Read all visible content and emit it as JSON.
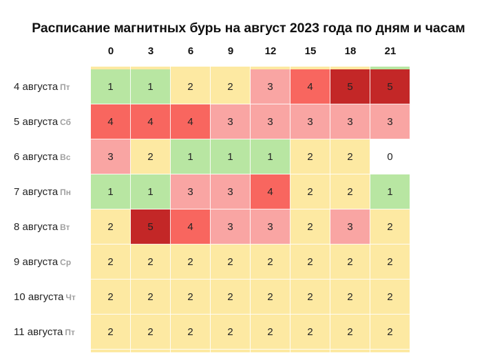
{
  "colors": {
    "0": "#ffffff",
    "1": "#b8e6a2",
    "2": "#fde9a2",
    "3": "#f9a5a3",
    "4": "#f8665f",
    "5": "#c32727"
  },
  "chart_data": {
    "type": "heatmap",
    "title": "Расписание магнитных бурь на август 2023 года по дням и часам",
    "x": [
      "0",
      "3",
      "6",
      "9",
      "12",
      "15",
      "18",
      "21"
    ],
    "rows": [
      {
        "day": "4 августа",
        "weekday": "Пт",
        "values": [
          1,
          1,
          2,
          2,
          3,
          4,
          5,
          5
        ]
      },
      {
        "day": "5 августа",
        "weekday": "Сб",
        "values": [
          4,
          4,
          4,
          3,
          3,
          3,
          3,
          3
        ]
      },
      {
        "day": "6 августа",
        "weekday": "Вс",
        "values": [
          3,
          2,
          1,
          1,
          1,
          2,
          2,
          0
        ]
      },
      {
        "day": "7 августа",
        "weekday": "Пн",
        "values": [
          1,
          1,
          3,
          3,
          4,
          2,
          2,
          1
        ]
      },
      {
        "day": "8 августа",
        "weekday": "Вт",
        "values": [
          2,
          5,
          4,
          3,
          3,
          2,
          3,
          2
        ]
      },
      {
        "day": "9 августа",
        "weekday": "Ср",
        "values": [
          2,
          2,
          2,
          2,
          2,
          2,
          2,
          2
        ]
      },
      {
        "day": "10 августа",
        "weekday": "Чт",
        "values": [
          2,
          2,
          2,
          2,
          2,
          2,
          2,
          2
        ]
      },
      {
        "day": "11 августа",
        "weekday": "Пт",
        "values": [
          2,
          2,
          2,
          2,
          2,
          2,
          2,
          2
        ]
      }
    ],
    "edge_values_above": [
      2,
      2,
      2,
      2,
      2,
      2,
      2,
      1
    ],
    "edge_values_below": [
      2,
      2,
      2,
      2,
      2,
      2,
      2,
      2
    ],
    "value_range": [
      0,
      5
    ],
    "legend": "none"
  }
}
